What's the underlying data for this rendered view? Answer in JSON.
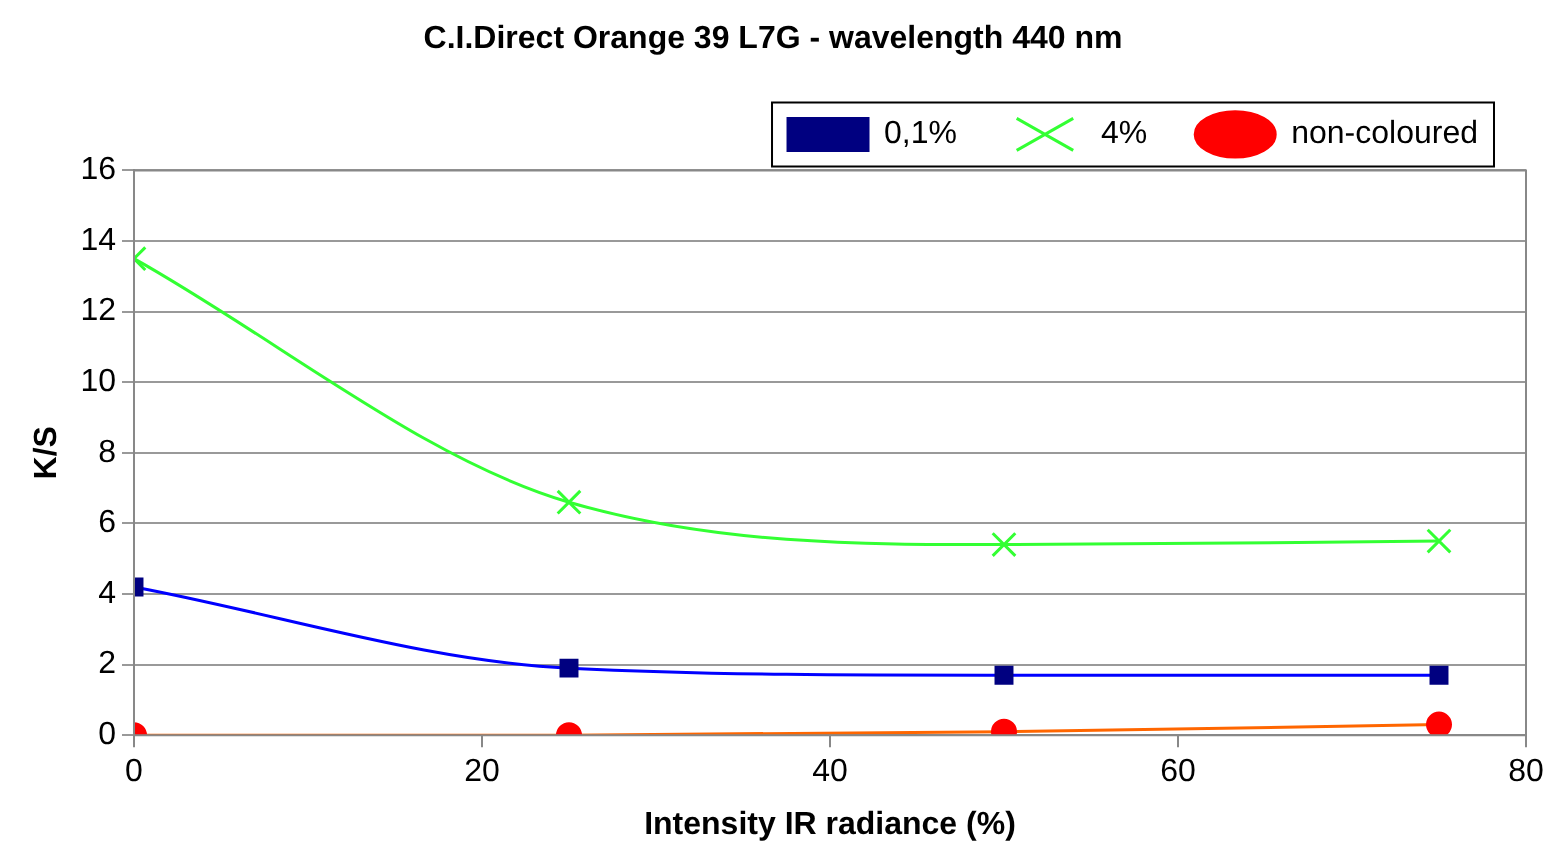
{
  "chart_data": {
    "type": "line",
    "title": "C.I.Direct Orange 39 L7G - wavelength 440 nm",
    "xlabel": "Intensity IR radiance (%)",
    "ylabel": "K/S",
    "x": [
      0,
      25,
      50,
      75
    ],
    "series": [
      {
        "name": "0,1%",
        "color": "#0000ff",
        "colors": [
          "#000080",
          "#000080",
          "#000080",
          "#000080"
        ],
        "marker": "square",
        "values": [
          4.2,
          1.9,
          1.7,
          1.7
        ]
      },
      {
        "name": "4%",
        "color": "#33ff33",
        "colors": [
          "#33ff33",
          "#33ff33",
          "#33ff33",
          "#33ff33"
        ],
        "marker": "cross",
        "values": [
          13.5,
          6.6,
          5.4,
          5.5
        ]
      },
      {
        "name": "non-coloured",
        "color": "#ff6600",
        "colors": [
          "#ff0000",
          "#ff0000",
          "#ff0000",
          "#ff0000"
        ],
        "marker": "circle",
        "values": [
          0,
          0,
          0.1,
          0.3
        ]
      }
    ],
    "xlim": [
      0,
      80
    ],
    "xticks": [
      0,
      20,
      40,
      60,
      80
    ],
    "ylim": [
      0,
      16
    ],
    "yticks": [
      0,
      2,
      4,
      6,
      8,
      10,
      12,
      14,
      16
    ],
    "grid": "y",
    "legend": "top right",
    "line_style": "solid"
  }
}
